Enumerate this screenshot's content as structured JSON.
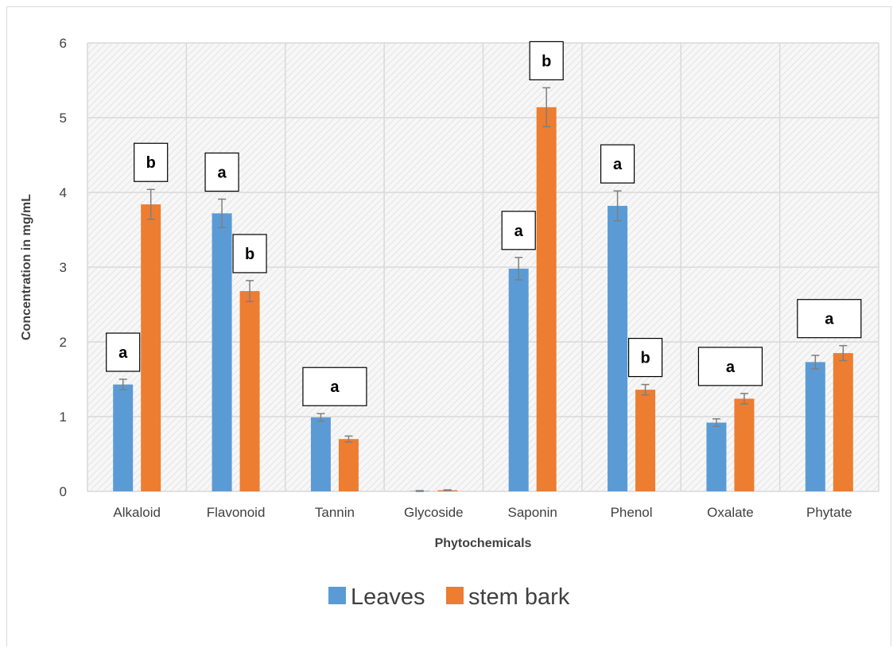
{
  "chart_data": {
    "type": "bar",
    "categories": [
      "Alkaloid",
      "Flavonoid",
      "Tannin",
      "Glycoside",
      "Saponin",
      "Phenol",
      "Oxalate",
      "Phytate"
    ],
    "series": [
      {
        "name": "Leaves",
        "color": "#5b9bd5",
        "values": [
          1.43,
          3.72,
          0.99,
          0.005,
          2.98,
          3.82,
          0.92,
          1.73
        ],
        "errors": [
          0.07,
          0.19,
          0.05,
          0.005,
          0.15,
          0.2,
          0.05,
          0.09
        ]
      },
      {
        "name": "stem bark",
        "color": "#ed7d31",
        "values": [
          3.84,
          2.68,
          0.7,
          0.015,
          5.14,
          1.36,
          1.24,
          1.85
        ],
        "errors": [
          0.2,
          0.14,
          0.04,
          0.005,
          0.26,
          0.07,
          0.07,
          0.1
        ]
      }
    ],
    "annotations": [
      {
        "category": "Alkaloid",
        "series": "Leaves",
        "label": "a"
      },
      {
        "category": "Alkaloid",
        "series": "stem bark",
        "label": "b"
      },
      {
        "category": "Flavonoid",
        "series": "Leaves",
        "label": "a"
      },
      {
        "category": "Flavonoid",
        "series": "stem bark",
        "label": "b"
      },
      {
        "category": "Tannin",
        "series": "both",
        "label": "a"
      },
      {
        "category": "Saponin",
        "series": "Leaves",
        "label": "a"
      },
      {
        "category": "Saponin",
        "series": "stem bark",
        "label": "b"
      },
      {
        "category": "Phenol",
        "series": "Leaves",
        "label": "a"
      },
      {
        "category": "Phenol",
        "series": "stem bark",
        "label": "b"
      },
      {
        "category": "Oxalate",
        "series": "both",
        "label": "a"
      },
      {
        "category": "Phytate",
        "series": "both",
        "label": "a"
      }
    ],
    "title": "",
    "xlabel": "Phytochemicals",
    "ylabel": "Concentration in mg/mL",
    "ylim": [
      0,
      6
    ],
    "yticks": [
      "0",
      "1",
      "2",
      "3",
      "4",
      "5",
      "6"
    ],
    "grid": true,
    "legend_position": "bottom"
  }
}
